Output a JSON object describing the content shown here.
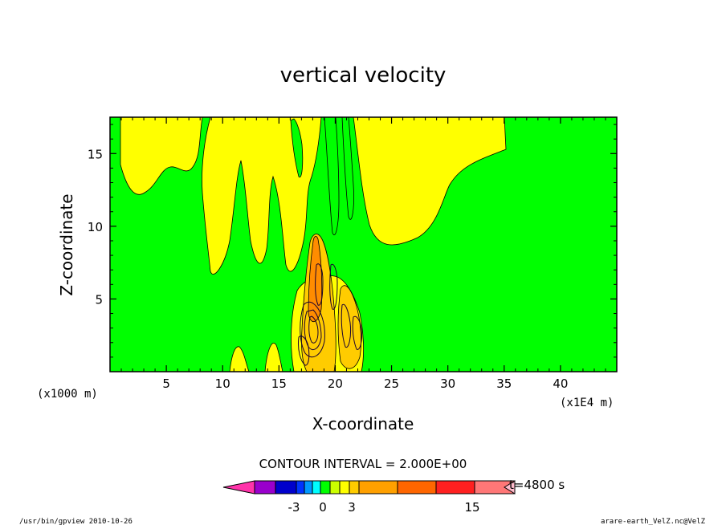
{
  "chart_data": {
    "type": "heatmap",
    "title": "vertical velocity",
    "xlabel": "X-coordinate",
    "ylabel": "Z-coordinate",
    "x_unit": "(x1E4 m)",
    "y_unit": "(x1000 m)",
    "xlim": [
      0,
      45
    ],
    "ylim": [
      0,
      17.5
    ],
    "x_ticks": [
      "5",
      "10",
      "15",
      "20",
      "25",
      "30",
      "35",
      "40"
    ],
    "y_ticks": [
      "5",
      "10",
      "15"
    ],
    "contour_interval": "CONTOUR INTERVAL = 2.000E+00",
    "time_label": "t=4800 s",
    "colorbar": {
      "tick_labels": [
        "-3",
        "0",
        "3",
        "15"
      ],
      "colors": [
        "#ff33aa",
        "#9900cc",
        "#0000cc",
        "#0033ff",
        "#0099ff",
        "#00ffff",
        "#00ff00",
        "#ccff00",
        "#ffff00",
        "#ffcc00",
        "#ffa000",
        "#ff6600",
        "#ff2020",
        "#ff7777",
        "#ffbbcc"
      ]
    },
    "field_summary": {
      "background": "#00ff00",
      "positive_region_color": "#ffff00",
      "max_region_color": "#ff8c00",
      "core_x_range": [
        17,
        23
      ],
      "core_z_max": 10
    }
  },
  "footer": {
    "left": "/usr/bin/gpview   2010-10-26",
    "right": "arare-earth_VelZ.nc@VelZ"
  }
}
